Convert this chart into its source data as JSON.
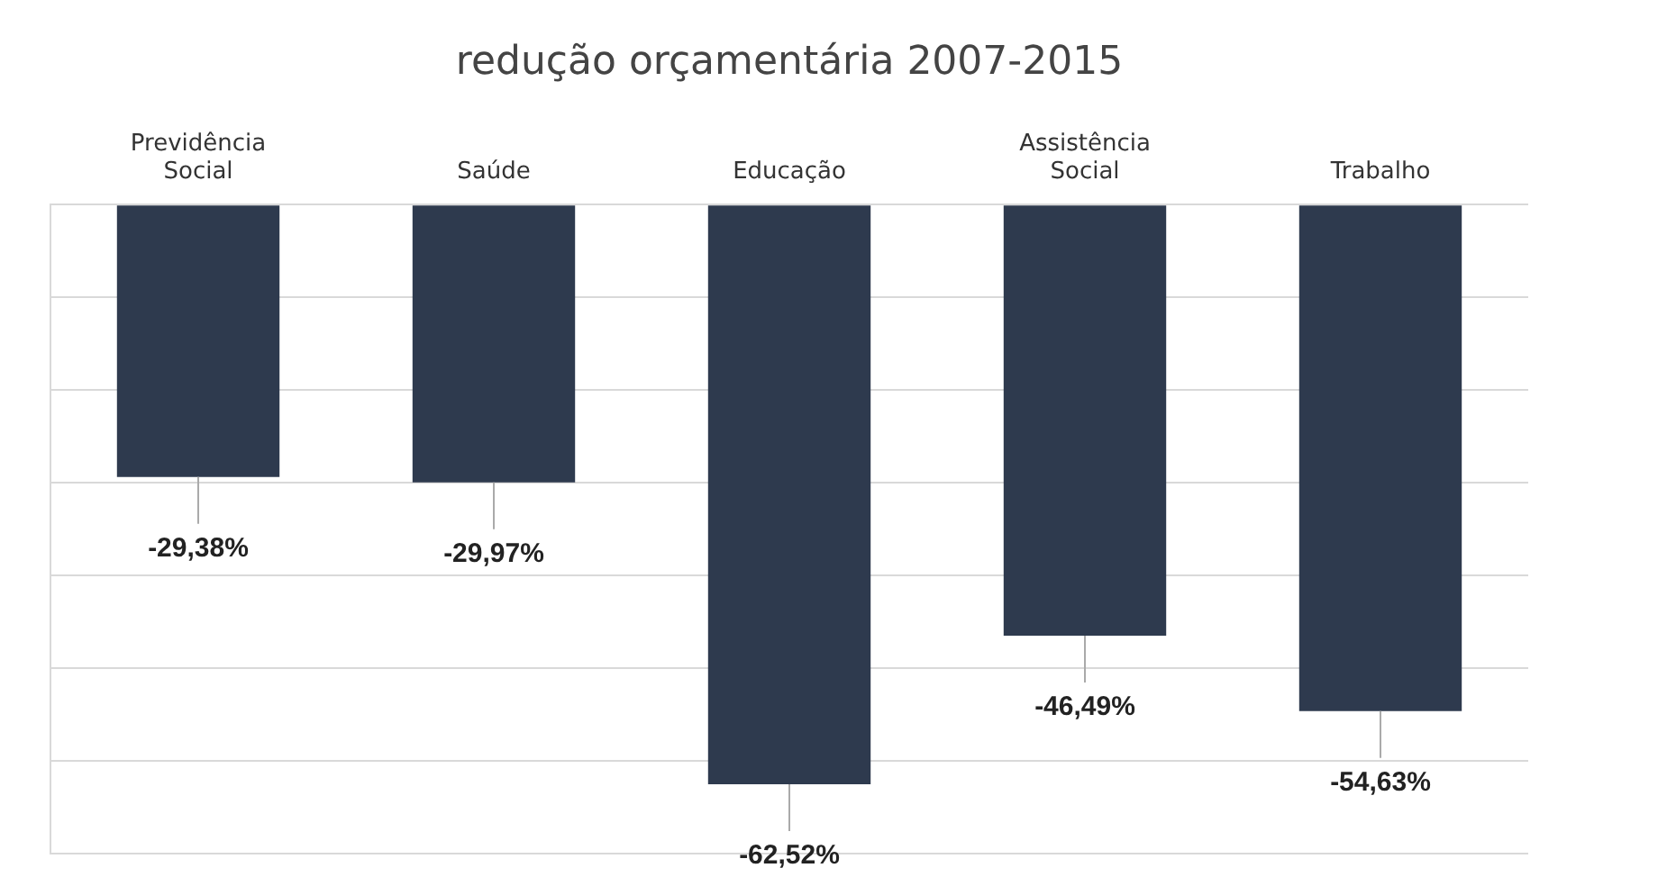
{
  "chart_data": {
    "type": "bar",
    "title": "redução orçamentária 2007-2015",
    "categories": [
      "Previdência Social",
      "Saúde",
      "Educação",
      "Assistência Social",
      "Trabalho"
    ],
    "values": [
      -29.38,
      -29.97,
      -62.52,
      -46.49,
      -54.63
    ],
    "value_labels": [
      "-29,38%",
      "-29,97%",
      "-62,52%",
      "-46,49%",
      "-54,63%"
    ],
    "color": "#2e3a4e",
    "ylim": [
      -70,
      0
    ],
    "yticks": [
      {
        "value": -70,
        "label": null
      },
      {
        "value": -60,
        "label": null
      },
      {
        "value": -50,
        "label": null
      },
      {
        "value": -40,
        "label": null
      },
      {
        "value": -30,
        "label": null
      },
      {
        "value": -20,
        "label": null
      },
      {
        "value": -10,
        "label": null
      },
      {
        "value": 0,
        "label": null
      }
    ],
    "grid": "y",
    "tick_labels": "x"
  }
}
